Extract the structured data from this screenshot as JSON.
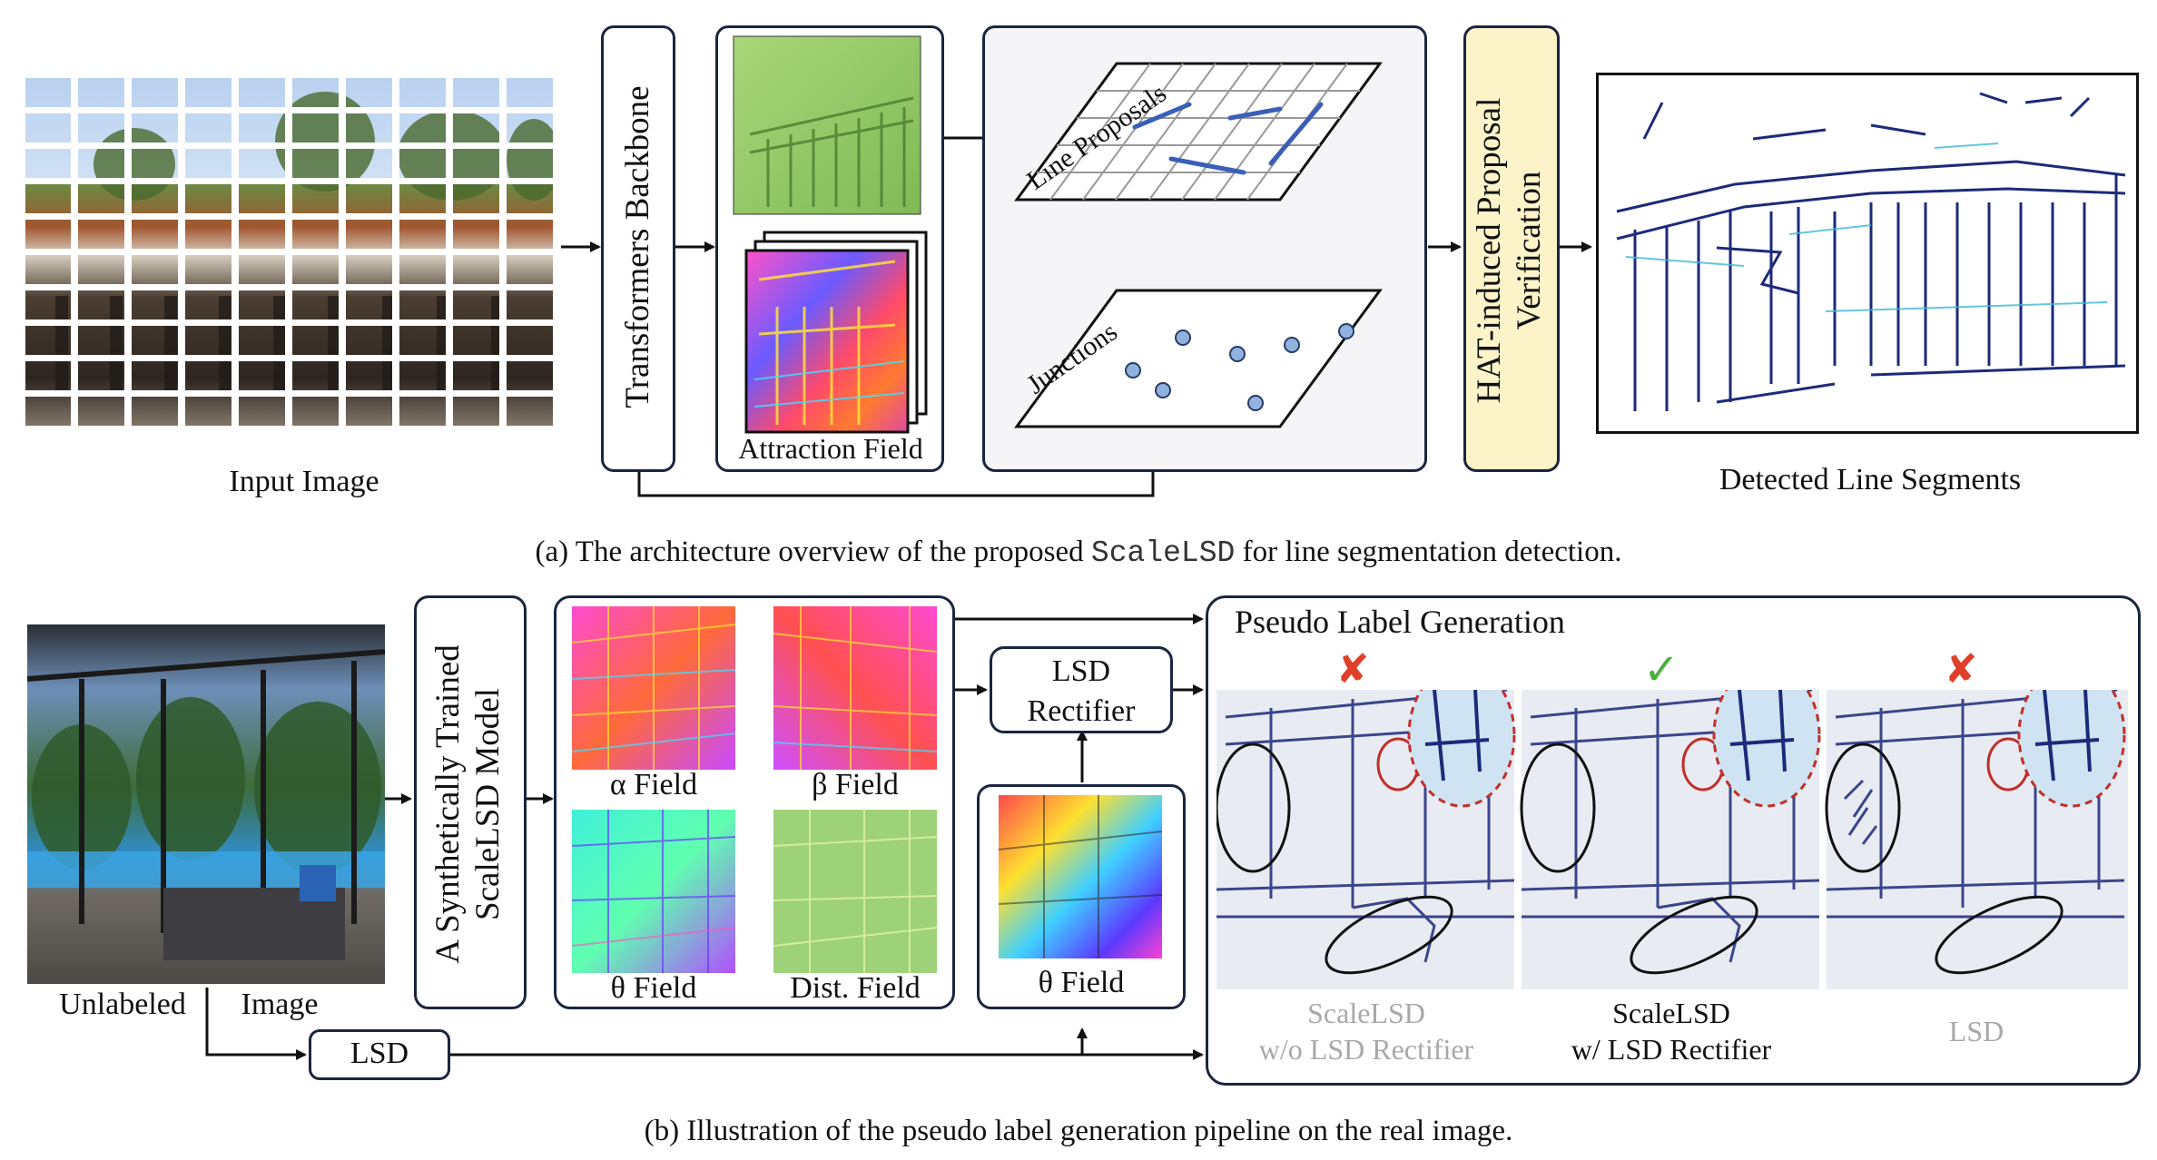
{
  "part_a": {
    "input_label": "Input Image",
    "backbone_label": "Transformers Backbone",
    "attraction_label": "Attraction Field",
    "line_proposals_label": "Line Proposals",
    "junctions_label": "Junctions",
    "verification_label_line1": "HAT-induced Proposal",
    "verification_label_line2": "Verification",
    "detected_label": "Detected Line Segments",
    "caption_prefix": "(a) The architecture overview of the proposed ",
    "caption_method": "ScaleLSD",
    "caption_suffix": " for line segmentation detection."
  },
  "part_b": {
    "unlabeled_word": "Unlabeled",
    "image_word": "Image",
    "model_line1": "A Synthetically Trained",
    "model_line2": "ScaleLSD  Model",
    "alpha_field": "α Field",
    "beta_field": "β Field",
    "theta_field": "θ Field",
    "dist_field": "Dist. Field",
    "rectifier_line1": "LSD",
    "rectifier_line2": "Rectifier",
    "theta_field_2": "θ Field",
    "lsd_box": "LSD",
    "pseudo_title": "Pseudo Label Generation",
    "result1_line1": "ScaleLSD",
    "result1_line2": "w/o LSD Rectifier",
    "result2_line1": "ScaleLSD",
    "result2_line2": "w/ LSD Rectifier",
    "result3_line1": "LSD",
    "mark_fail": "✘",
    "mark_ok": "✓",
    "caption": "(b) Illustration of the pseudo label generation pipeline on the real image."
  },
  "colors": {
    "line_blue": "#3a5fb8",
    "junction_fill": "#8fb3de",
    "verification_fill": "#fcf3c9",
    "fail_red": "#e0402a",
    "ok_green": "#4caf3c"
  }
}
